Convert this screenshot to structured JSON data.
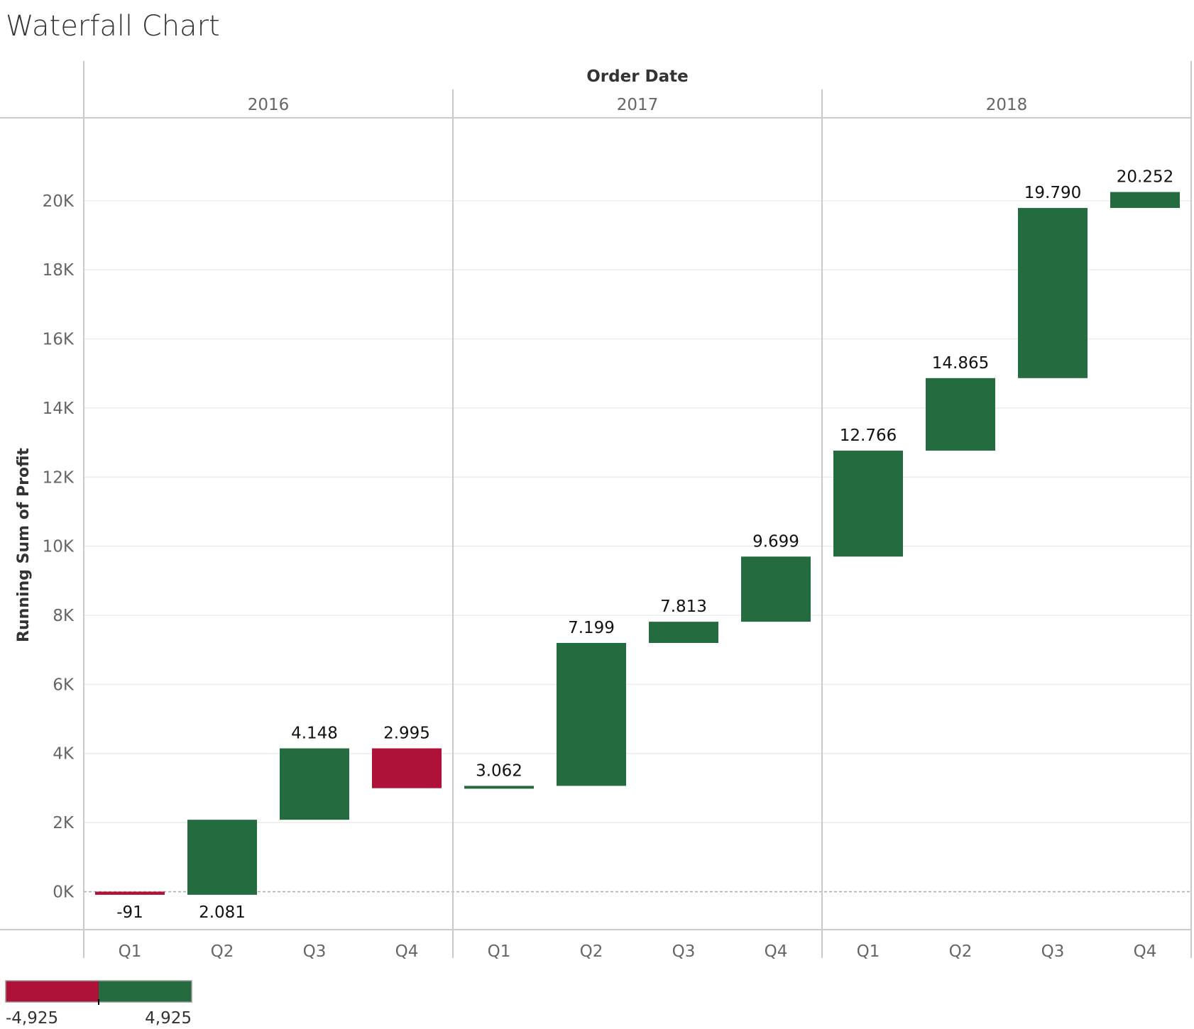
{
  "title": "Waterfall Chart",
  "header": {
    "title": "Order Date"
  },
  "colors": {
    "positive": "#246B40",
    "negative": "#AF1239",
    "grid": "#EBEBEB",
    "divider": "#C9C9C9",
    "zero_line": "#AAAAAA"
  },
  "chart_data": {
    "type": "bar",
    "subtype": "waterfall",
    "column_header": "Order Date",
    "ylabel": "Running Sum of Profit",
    "ylim": [
      -1100,
      22400
    ],
    "y_ticks": [
      0,
      2000,
      4000,
      6000,
      8000,
      10000,
      12000,
      14000,
      16000,
      18000,
      20000
    ],
    "y_tick_labels": [
      "0K",
      "2K",
      "4K",
      "6K",
      "8K",
      "10K",
      "12K",
      "14K",
      "16K",
      "18K",
      "20K"
    ],
    "grid": true,
    "years": [
      "2016",
      "2017",
      "2018"
    ],
    "quarters": [
      "Q1",
      "Q2",
      "Q3",
      "Q4"
    ],
    "bars": [
      {
        "year": "2016",
        "quarter": "Q1",
        "start": 0,
        "end": -91,
        "label": "-91"
      },
      {
        "year": "2016",
        "quarter": "Q2",
        "start": -91,
        "end": 2081,
        "label": "2.081"
      },
      {
        "year": "2016",
        "quarter": "Q3",
        "start": 2081,
        "end": 4148,
        "label": "4.148"
      },
      {
        "year": "2016",
        "quarter": "Q4",
        "start": 4148,
        "end": 2995,
        "label": "2.995"
      },
      {
        "year": "2017",
        "quarter": "Q1",
        "start": 2995,
        "end": 3062,
        "label": "3.062"
      },
      {
        "year": "2017",
        "quarter": "Q2",
        "start": 3062,
        "end": 7199,
        "label": "7.199"
      },
      {
        "year": "2017",
        "quarter": "Q3",
        "start": 7199,
        "end": 7813,
        "label": "7.813"
      },
      {
        "year": "2017",
        "quarter": "Q4",
        "start": 7813,
        "end": 9699,
        "label": "9.699"
      },
      {
        "year": "2018",
        "quarter": "Q1",
        "start": 9699,
        "end": 12766,
        "label": "12.766"
      },
      {
        "year": "2018",
        "quarter": "Q2",
        "start": 12766,
        "end": 14865,
        "label": "14.865"
      },
      {
        "year": "2018",
        "quarter": "Q3",
        "start": 14865,
        "end": 19790,
        "label": "19.790"
      },
      {
        "year": "2018",
        "quarter": "Q4",
        "start": 19790,
        "end": 20252,
        "label": "20.252"
      }
    ],
    "color_legend": {
      "type": "diverging",
      "min_label": "-4,925",
      "max_label": "4,925",
      "min": -4925,
      "max": 4925,
      "placement": "bottom-left"
    }
  }
}
